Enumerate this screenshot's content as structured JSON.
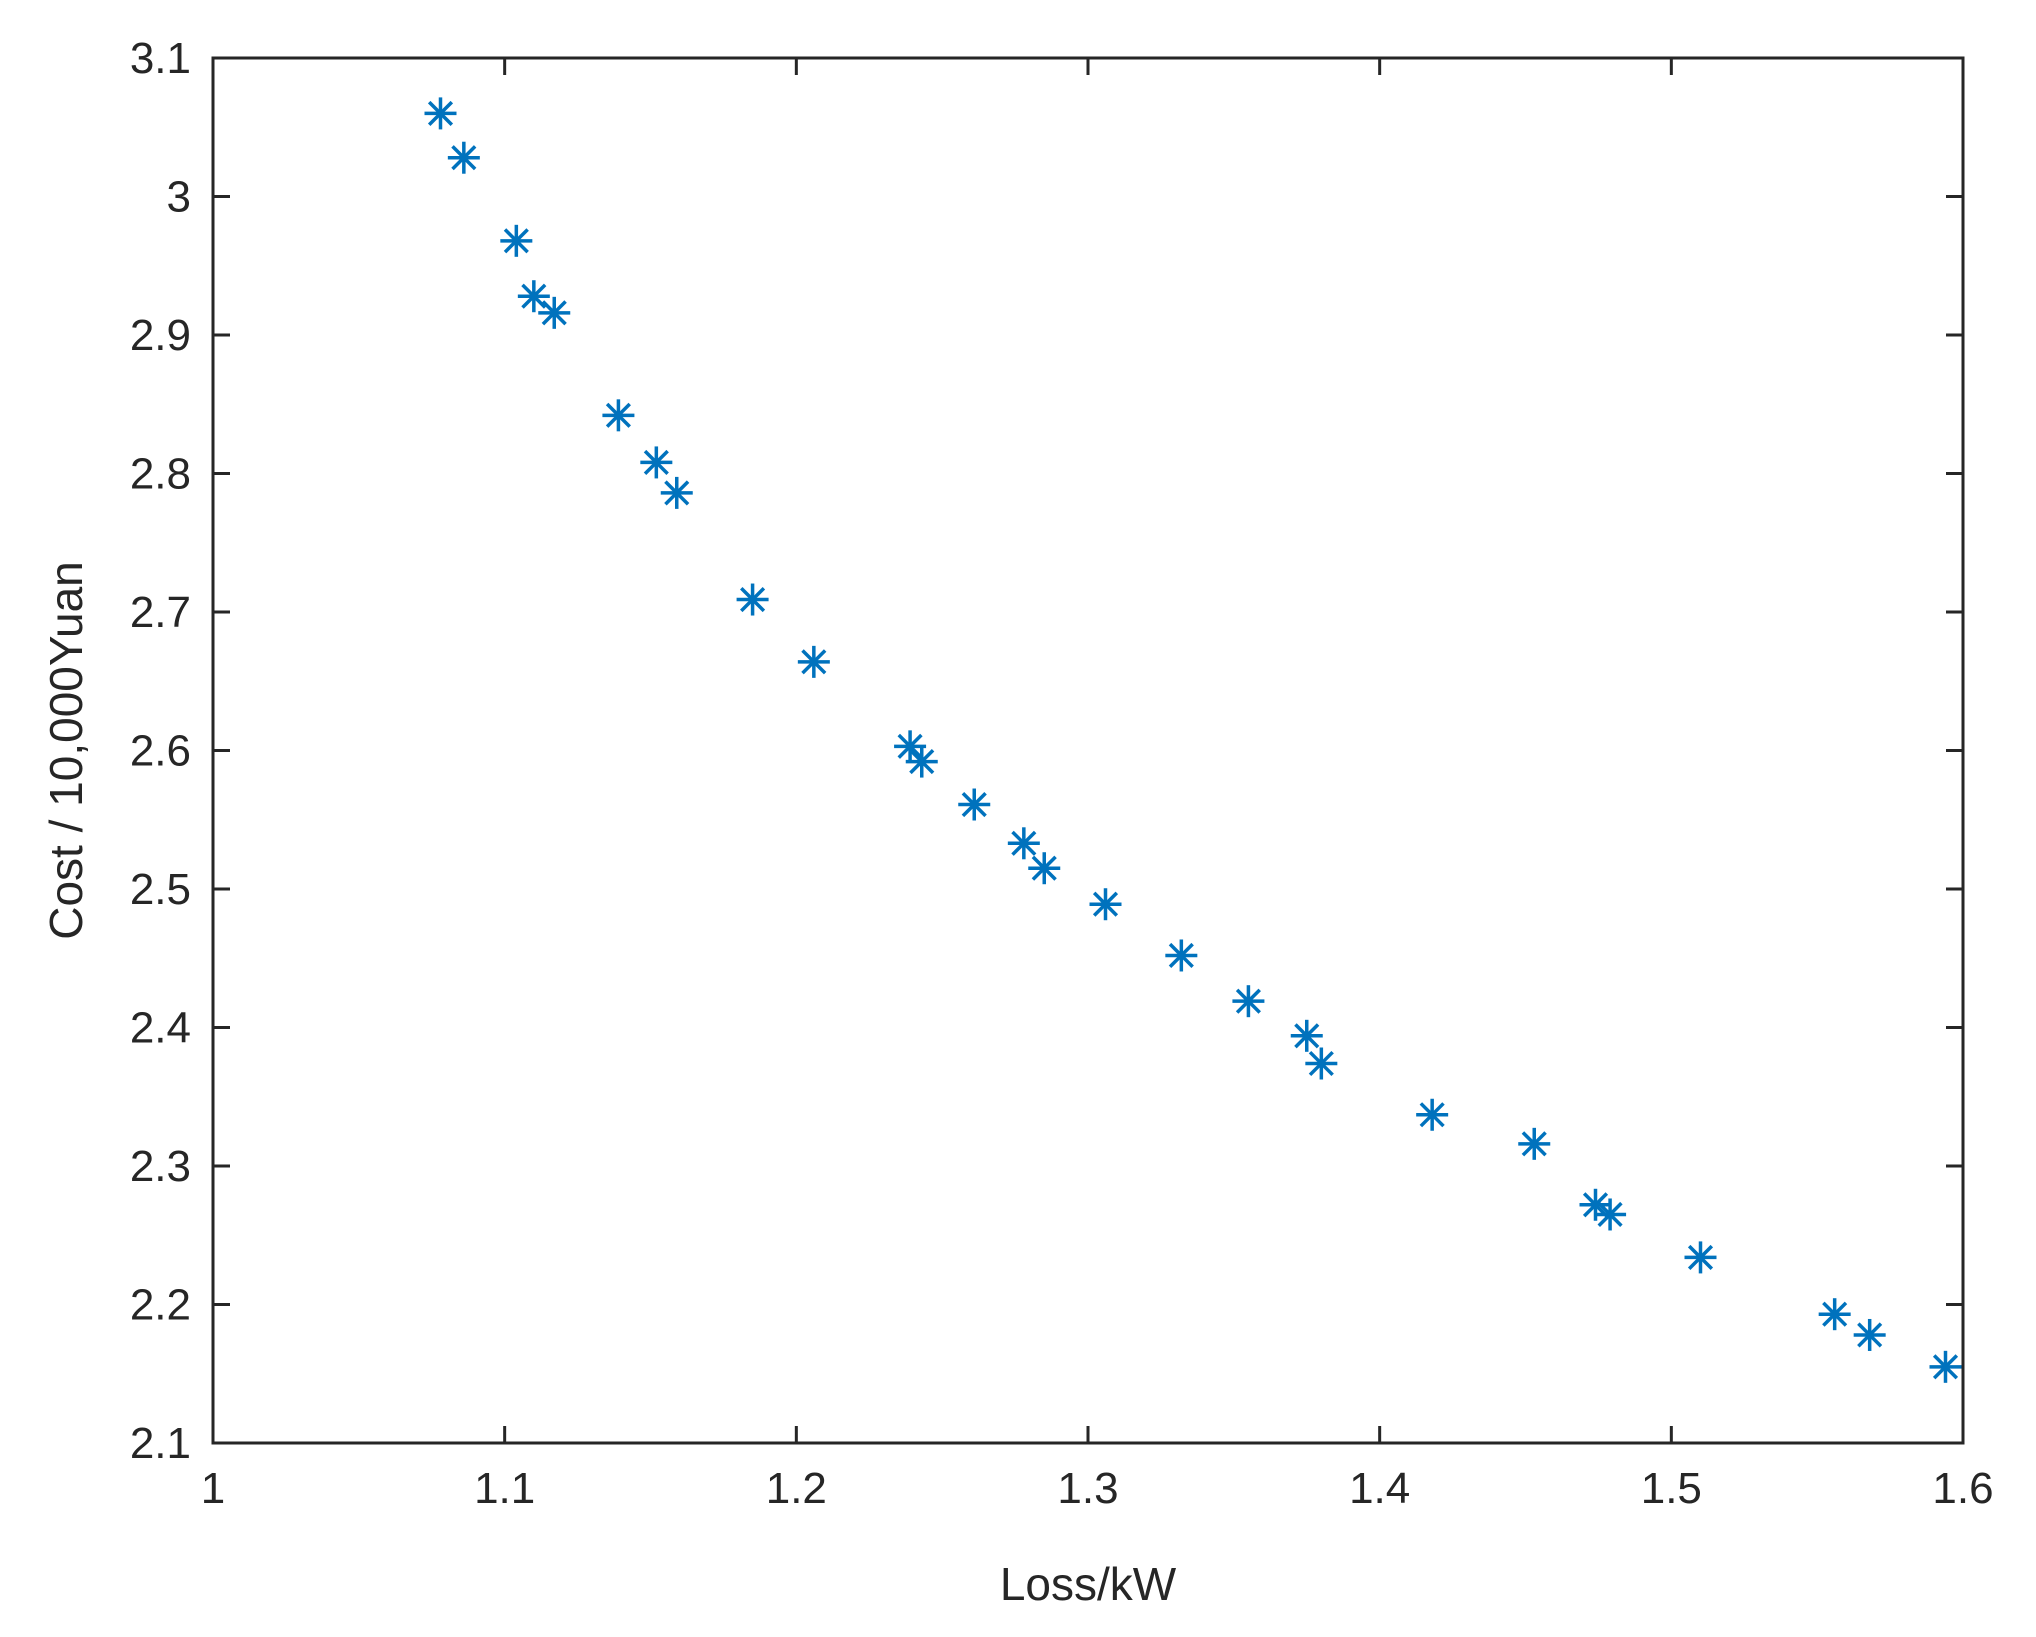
{
  "chart_data": {
    "type": "scatter",
    "xlabel": "Loss/kW",
    "ylabel": "Cost / 10,000Yuan",
    "xlim": [
      1,
      1.6
    ],
    "ylim": [
      2.1,
      3.1
    ],
    "grid": false,
    "marker": "asterisk",
    "marker_color": "#0072BD",
    "x_ticks": [
      "1",
      "1.1",
      "1.2",
      "1.3",
      "1.4",
      "1.5",
      "1.6"
    ],
    "y_ticks": [
      "2.1",
      "2.2",
      "2.3",
      "2.4",
      "2.5",
      "2.6",
      "2.7",
      "2.8",
      "2.9",
      "3",
      "3.1"
    ],
    "series": [
      {
        "points": [
          {
            "x": 1.078,
            "y": 3.06
          },
          {
            "x": 1.086,
            "y": 3.028
          },
          {
            "x": 1.104,
            "y": 2.968
          },
          {
            "x": 1.11,
            "y": 2.928
          },
          {
            "x": 1.117,
            "y": 2.916
          },
          {
            "x": 1.139,
            "y": 2.842
          },
          {
            "x": 1.152,
            "y": 2.808
          },
          {
            "x": 1.159,
            "y": 2.786
          },
          {
            "x": 1.185,
            "y": 2.709
          },
          {
            "x": 1.206,
            "y": 2.664
          },
          {
            "x": 1.239,
            "y": 2.603
          },
          {
            "x": 1.243,
            "y": 2.592
          },
          {
            "x": 1.261,
            "y": 2.561
          },
          {
            "x": 1.278,
            "y": 2.533
          },
          {
            "x": 1.285,
            "y": 2.515
          },
          {
            "x": 1.306,
            "y": 2.489
          },
          {
            "x": 1.332,
            "y": 2.452
          },
          {
            "x": 1.355,
            "y": 2.419
          },
          {
            "x": 1.375,
            "y": 2.394
          },
          {
            "x": 1.38,
            "y": 2.374
          },
          {
            "x": 1.418,
            "y": 2.337
          },
          {
            "x": 1.453,
            "y": 2.316
          },
          {
            "x": 1.474,
            "y": 2.272
          },
          {
            "x": 1.479,
            "y": 2.265
          },
          {
            "x": 1.51,
            "y": 2.234
          },
          {
            "x": 1.556,
            "y": 2.193
          },
          {
            "x": 1.568,
            "y": 2.178
          },
          {
            "x": 1.594,
            "y": 2.155
          }
        ]
      }
    ]
  }
}
